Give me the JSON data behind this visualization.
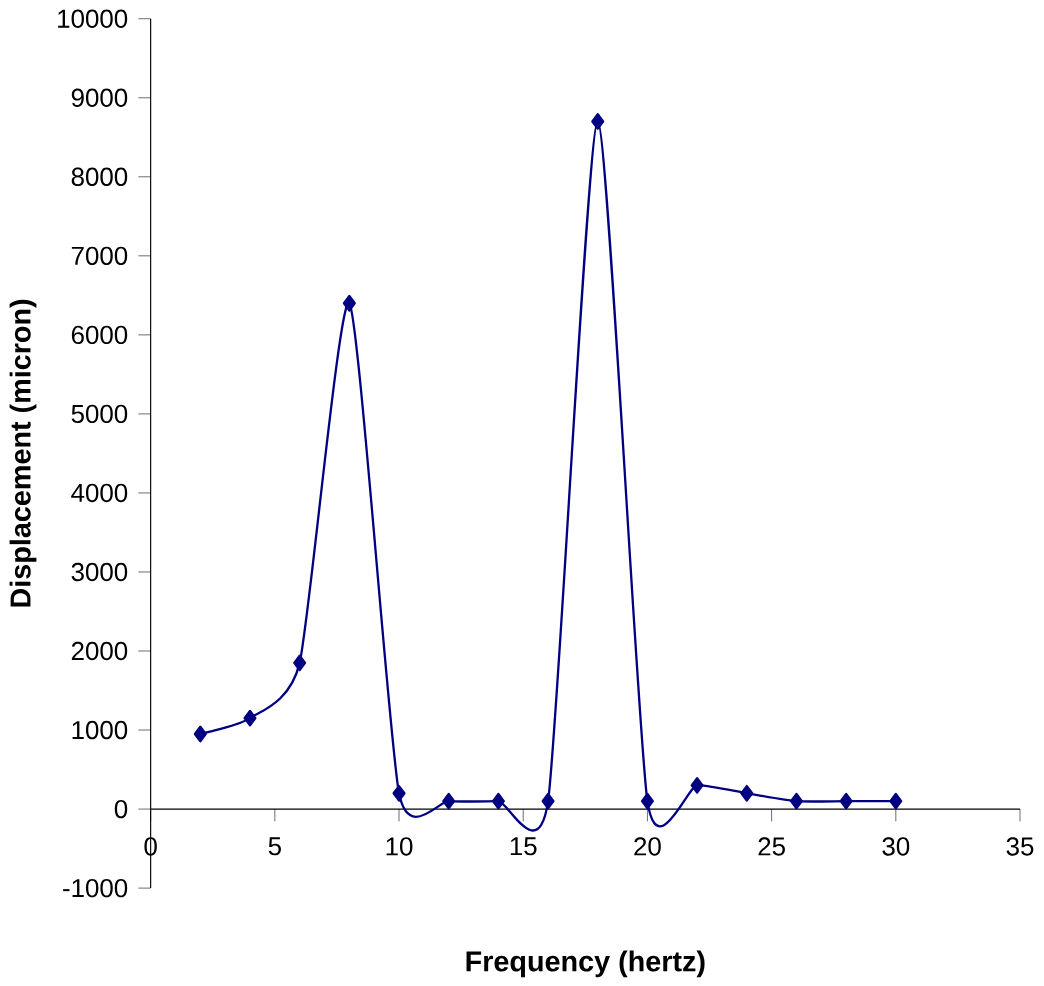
{
  "chart_data": {
    "type": "line",
    "xlabel": "Frequency (hertz)",
    "ylabel": "Displacement (micron)",
    "x": [
      2,
      4,
      6,
      8,
      10,
      12,
      14,
      16,
      18,
      20,
      22,
      24,
      26,
      28,
      30
    ],
    "series": [
      {
        "color": "#000080",
        "values": [
          950,
          1150,
          1850,
          6400,
          200,
          100,
          100,
          100,
          8700,
          100,
          300,
          200,
          100,
          100,
          100
        ]
      }
    ],
    "xlim": [
      0,
      35
    ],
    "xticks": [
      0,
      5,
      10,
      15,
      20,
      25,
      30,
      35
    ],
    "ylim": [
      -1000,
      10000
    ],
    "yticks": [
      -1000,
      0,
      1000,
      2000,
      3000,
      4000,
      5000,
      6000,
      7000,
      8000,
      9000,
      10000
    ],
    "marker": "diamond",
    "line_style": "solid",
    "grid": false
  }
}
